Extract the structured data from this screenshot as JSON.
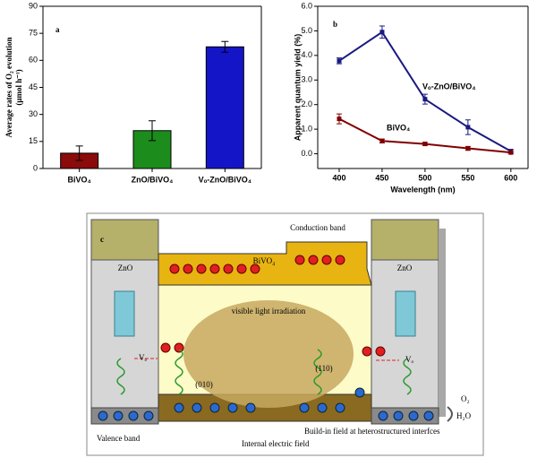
{
  "chart_data": [
    {
      "type": "bar",
      "panel": "a",
      "y_label": [
        "Average rates of O₂ evolution",
        "(μmol h⁻¹)"
      ],
      "categories": [
        "BiVO₄",
        "ZnO/BiVO₄",
        "Vₒ-ZnO/BiVO₄"
      ],
      "values": [
        8.5,
        21,
        67.5
      ],
      "errors": [
        4,
        5.5,
        3
      ],
      "colors": [
        "#8b0a0a",
        "#1c8c1c",
        "#1515c8"
      ],
      "ylim": [
        0,
        90
      ],
      "yticks": [
        0,
        15,
        30,
        45,
        60,
        75,
        90
      ]
    },
    {
      "type": "line",
      "panel": "b",
      "x_label": "Wavelength (nm)",
      "y_label": "Apparent quantum yield (%)",
      "x": [
        400,
        450,
        500,
        550,
        600
      ],
      "series": [
        {
          "name": "Vₒ-ZnO/BiVO₄",
          "color": "#1a1a80",
          "values": [
            3.78,
            4.95,
            2.22,
            1.08,
            0.1
          ],
          "errors": [
            0.12,
            0.25,
            0.2,
            0.3,
            0.08
          ]
        },
        {
          "name": "BiVO₄",
          "color": "#800000",
          "values": [
            1.42,
            0.52,
            0.4,
            0.22,
            0.05
          ],
          "errors": [
            0.2,
            0.08,
            0.06,
            0.08,
            0.04
          ]
        }
      ],
      "xlim": [
        375,
        620
      ],
      "xticks": [
        400,
        450,
        500,
        550,
        600
      ],
      "ylim": [
        -0.6,
        6.0
      ],
      "yticks": [
        {
          "value": 0,
          "label": "0.0"
        },
        {
          "value": 1,
          "label": "1.0"
        },
        {
          "value": 2,
          "label": "2.0"
        },
        {
          "value": 3,
          "label": "3.0"
        },
        {
          "value": 4,
          "label": "4.0"
        },
        {
          "value": 5,
          "label": "5.0"
        },
        {
          "value": 6,
          "label": "6.0"
        }
      ]
    }
  ],
  "diagram": {
    "panel": "c",
    "left_material": "ZnO",
    "right_material": "ZnO",
    "conduction_band": "Conduction band",
    "middle_material": "BiVO₄",
    "irradiation": "visible light irradiation",
    "vacancy_left": "Vₒ",
    "vacancy_right": "Vₒ",
    "facet_a": "(010)",
    "facet_b": "(110)",
    "product": "O₂",
    "reactant": "H₂O",
    "valence_band": "Valence band",
    "interface_field": "Build-in field at heterostructured interfces",
    "internal_field": "Internal electric field"
  }
}
